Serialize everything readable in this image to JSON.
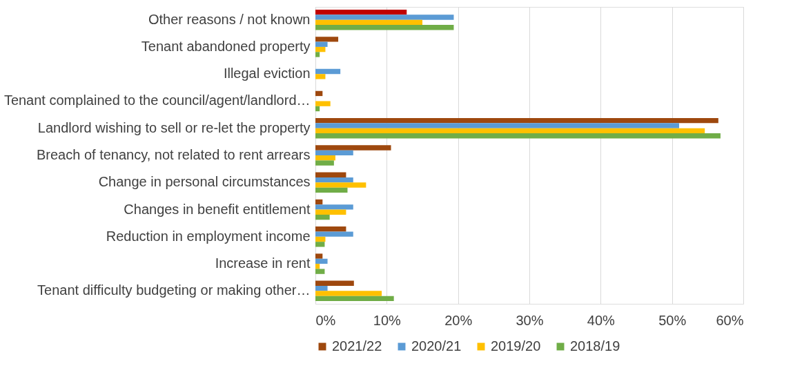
{
  "chart_data": {
    "type": "bar",
    "orientation": "horizontal",
    "categories": [
      "Other reasons / not known",
      "Tenant abandoned property",
      "Illegal eviction",
      "Tenant complained to the council/agent/landlord…",
      "Landlord wishing to sell or re-let the property",
      "Breach of tenancy, not related to rent arrears",
      "Change in personal circumstances",
      "Changes  in benefit entitlement",
      "Reduction in employment income",
      "Increase in rent",
      "Tenant difficulty budgeting or making other…"
    ],
    "series": [
      {
        "name": "2021/22",
        "color": "#9e480e",
        "colors": [
          "#c00000",
          "#9e480e",
          "#9e480e",
          "#9e480e",
          "#9e480e",
          "#9e480e",
          "#9e480e",
          "#9e480e",
          "#9e480e",
          "#9e480e",
          "#9e480e"
        ],
        "values": [
          12.8,
          3.2,
          null,
          1.0,
          56.5,
          10.6,
          4.3,
          1.0,
          4.3,
          1.0,
          5.4
        ]
      },
      {
        "name": "2020/21",
        "color": "#5b9bd5",
        "values": [
          19.4,
          1.7,
          3.5,
          null,
          51.0,
          5.3,
          5.3,
          5.3,
          5.3,
          1.7,
          1.7
        ]
      },
      {
        "name": "2019/20",
        "color": "#ffc000",
        "values": [
          15.0,
          1.4,
          1.4,
          2.1,
          54.6,
          2.8,
          7.1,
          4.3,
          1.4,
          0.6,
          9.3
        ]
      },
      {
        "name": "2018/19",
        "color": "#70ad47",
        "values": [
          19.4,
          0.6,
          null,
          0.6,
          56.8,
          2.6,
          4.5,
          2.0,
          1.3,
          1.3,
          11.0
        ]
      }
    ],
    "xlim": [
      0,
      60
    ],
    "xticks": [
      {
        "value": 0,
        "label": "0%"
      },
      {
        "value": 10,
        "label": "10%"
      },
      {
        "value": 20,
        "label": "20%"
      },
      {
        "value": 30,
        "label": "30%"
      },
      {
        "value": 40,
        "label": "40%"
      },
      {
        "value": 50,
        "label": "50%"
      },
      {
        "value": 60,
        "label": "60%"
      }
    ],
    "grid": "x",
    "legend": "bottom"
  }
}
